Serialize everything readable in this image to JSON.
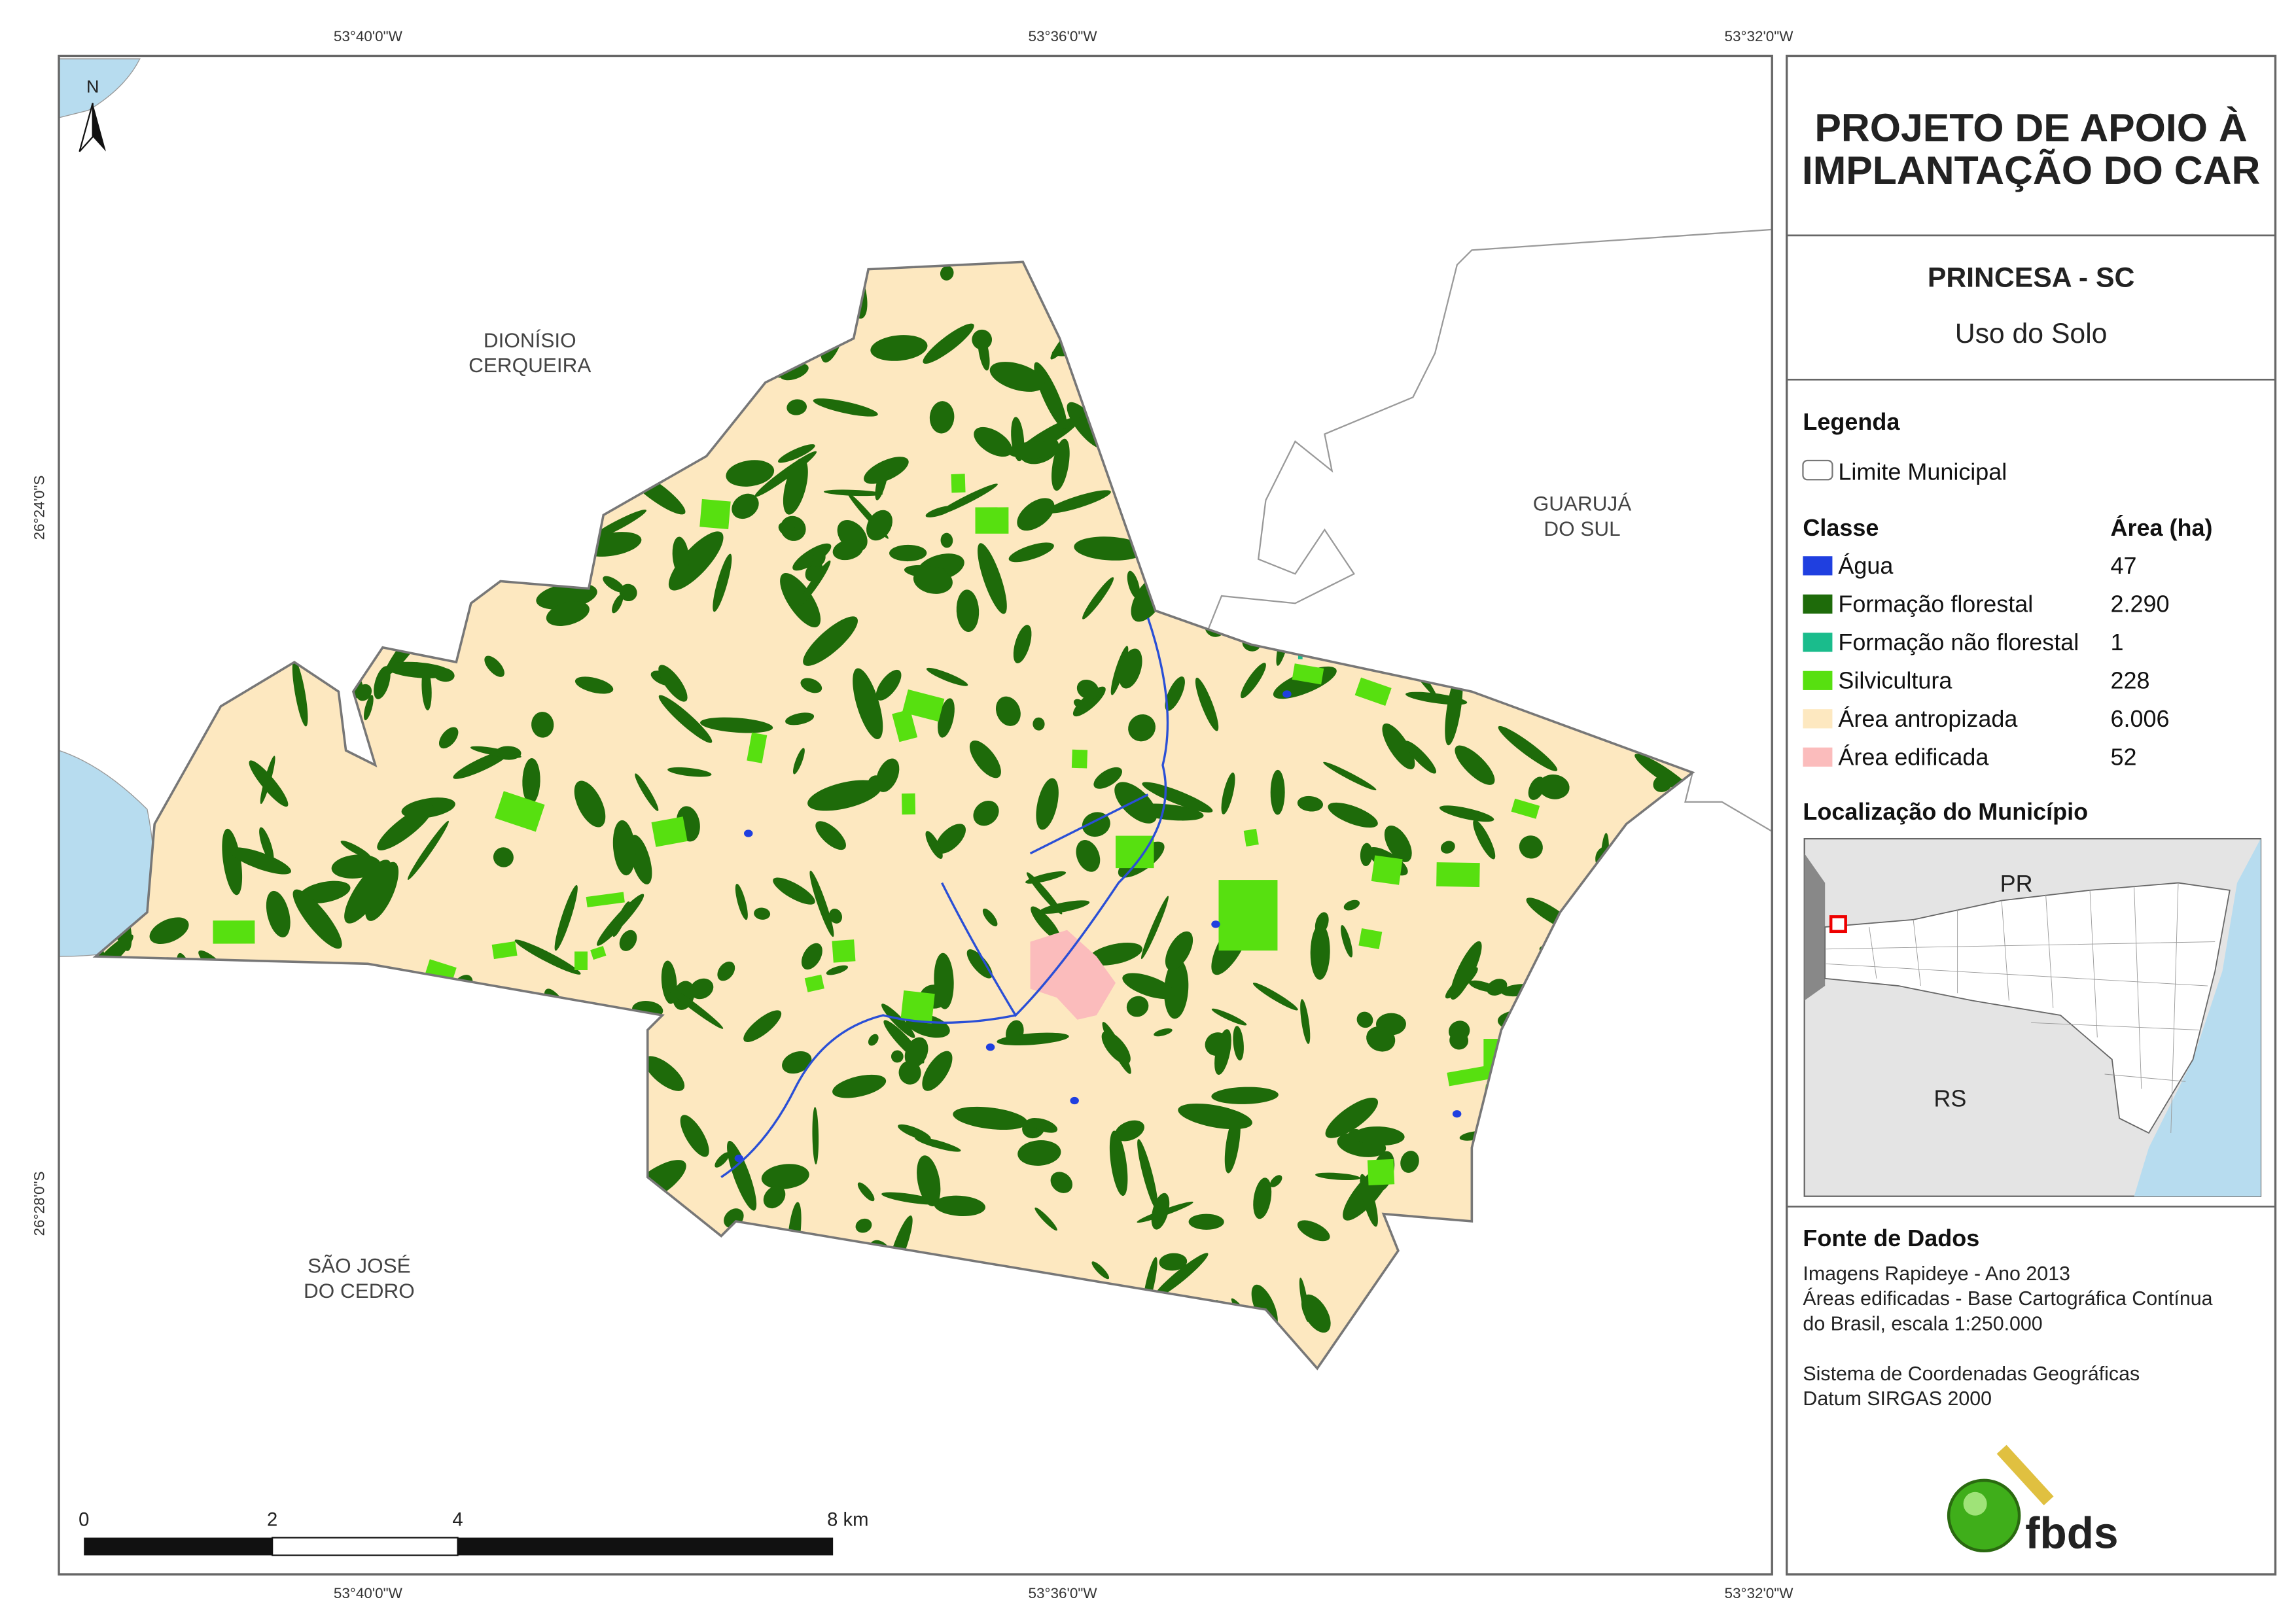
{
  "header": {
    "title_lines": [
      "PROJETO DE APOIO À",
      "IMPLANTAÇÃO DO CAR"
    ],
    "municipality": "PRINCESA - SC",
    "subtitle": "Uso do Solo"
  },
  "legend": {
    "title": "Legenda",
    "boundary": "Limite Municipal",
    "class_header": "Classe",
    "area_header": "Área (ha)",
    "classes": [
      {
        "name": "Água",
        "area": "47",
        "color": "#1f3fe0"
      },
      {
        "name": "Formação florestal",
        "area": "2.290",
        "color": "#1e6b0a"
      },
      {
        "name": "Formação não florestal",
        "area": "1",
        "color": "#1abc8c"
      },
      {
        "name": "Silvicultura",
        "area": "228",
        "color": "#57e010"
      },
      {
        "name": "Área antropizada",
        "area": "6.006",
        "color": "#fde8c0"
      },
      {
        "name": "Área edificada",
        "area": "52",
        "color": "#fbbcbc"
      }
    ]
  },
  "location": {
    "title": "Localização do Município",
    "labels": [
      "PR",
      "RS"
    ]
  },
  "sources": {
    "title": "Fonte de Dados",
    "lines": [
      "Imagens Rapideye - Ano 2013",
      "Áreas edificadas - Base Cartográfica Contínua",
      "do Brasil, escala 1:250.000",
      "",
      "Sistema de Coordenadas Geográficas",
      "Datum SIRGAS 2000"
    ]
  },
  "logo": "fbds",
  "map": {
    "north": "N",
    "longitudes": [
      "53°40'0\"W",
      "53°36'0\"W",
      "53°32'0\"W"
    ],
    "latitudes": [
      "26°24'0\"S",
      "26°28'0\"S"
    ],
    "neighbors": [
      {
        "lines": [
          "DIONÍSIO",
          "CERQUEIRA"
        ]
      },
      {
        "lines": [
          "GUARUJÁ",
          "DO SUL"
        ]
      },
      {
        "lines": [
          "SÃO JOSÉ",
          "DO CEDRO"
        ]
      }
    ],
    "scale_labels": [
      "0",
      "2",
      "4",
      "8 km"
    ]
  }
}
